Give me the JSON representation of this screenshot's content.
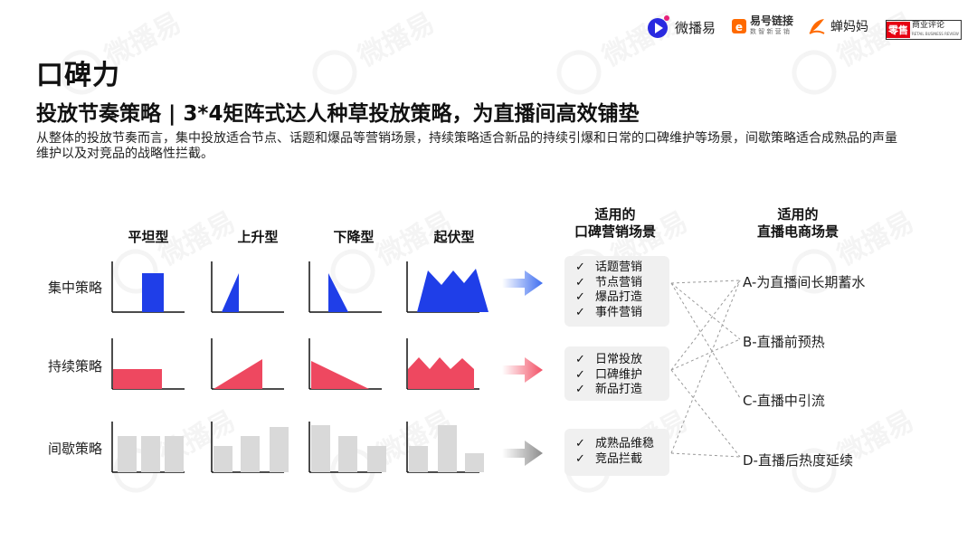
{
  "logos": [
    {
      "name": "微播易"
    },
    {
      "name": "易号链接",
      "tagline": "数 智 新 营 销"
    },
    {
      "name": "蝉妈妈"
    },
    {
      "name": "商业评论",
      "badge": "零售",
      "tagline": "RETAIL BUSINESS REVIEW"
    }
  ],
  "watermark_text": "微播易",
  "title": "口碑力",
  "subtitle": "投放节奏策略 | 3*4矩阵式达人种草投放策略，为直播间高效铺垫",
  "description": "从整体的投放节奏而言，集中投放适合节点、话题和爆品等营销场景，持续策略适合新品的持续引爆和日常的口碑维护等场景，间歇策略适合成熟品的声量维护以及对竞品的战略性拦截。",
  "columns": [
    "平坦型",
    "上升型",
    "下降型",
    "起伏型"
  ],
  "strategies": [
    {
      "label": "集中策略",
      "color": "#1f3ee8",
      "arrow_color": "#3d6df0",
      "scenes": [
        "话题营销",
        "节点营销",
        "爆品打造",
        "事件营销"
      ]
    },
    {
      "label": "持续策略",
      "color": "#ee4860",
      "arrow_color": "#f25065",
      "scenes": [
        "日常投放",
        "口碑维护",
        "新品打造"
      ]
    },
    {
      "label": "间歇策略",
      "color": "#d9d9d9",
      "arrow_color": "#8c8c8c",
      "scenes": [
        "成熟品维稳",
        "竞品拦截"
      ]
    }
  ],
  "check_symbol": "✓",
  "scene_header": [
    "适用的",
    "口碑营销场景"
  ],
  "live_header": [
    "适用的",
    "直播电商场景"
  ],
  "live_items": [
    "A-为直播间长期蓄水",
    "B-直播前预热",
    "C-直播中引流",
    "D-直播后热度延续"
  ],
  "colors": {
    "logo_blue": "#2a2ae0",
    "logo_orange": "#ff6a00",
    "logo_red": "#e60012"
  }
}
